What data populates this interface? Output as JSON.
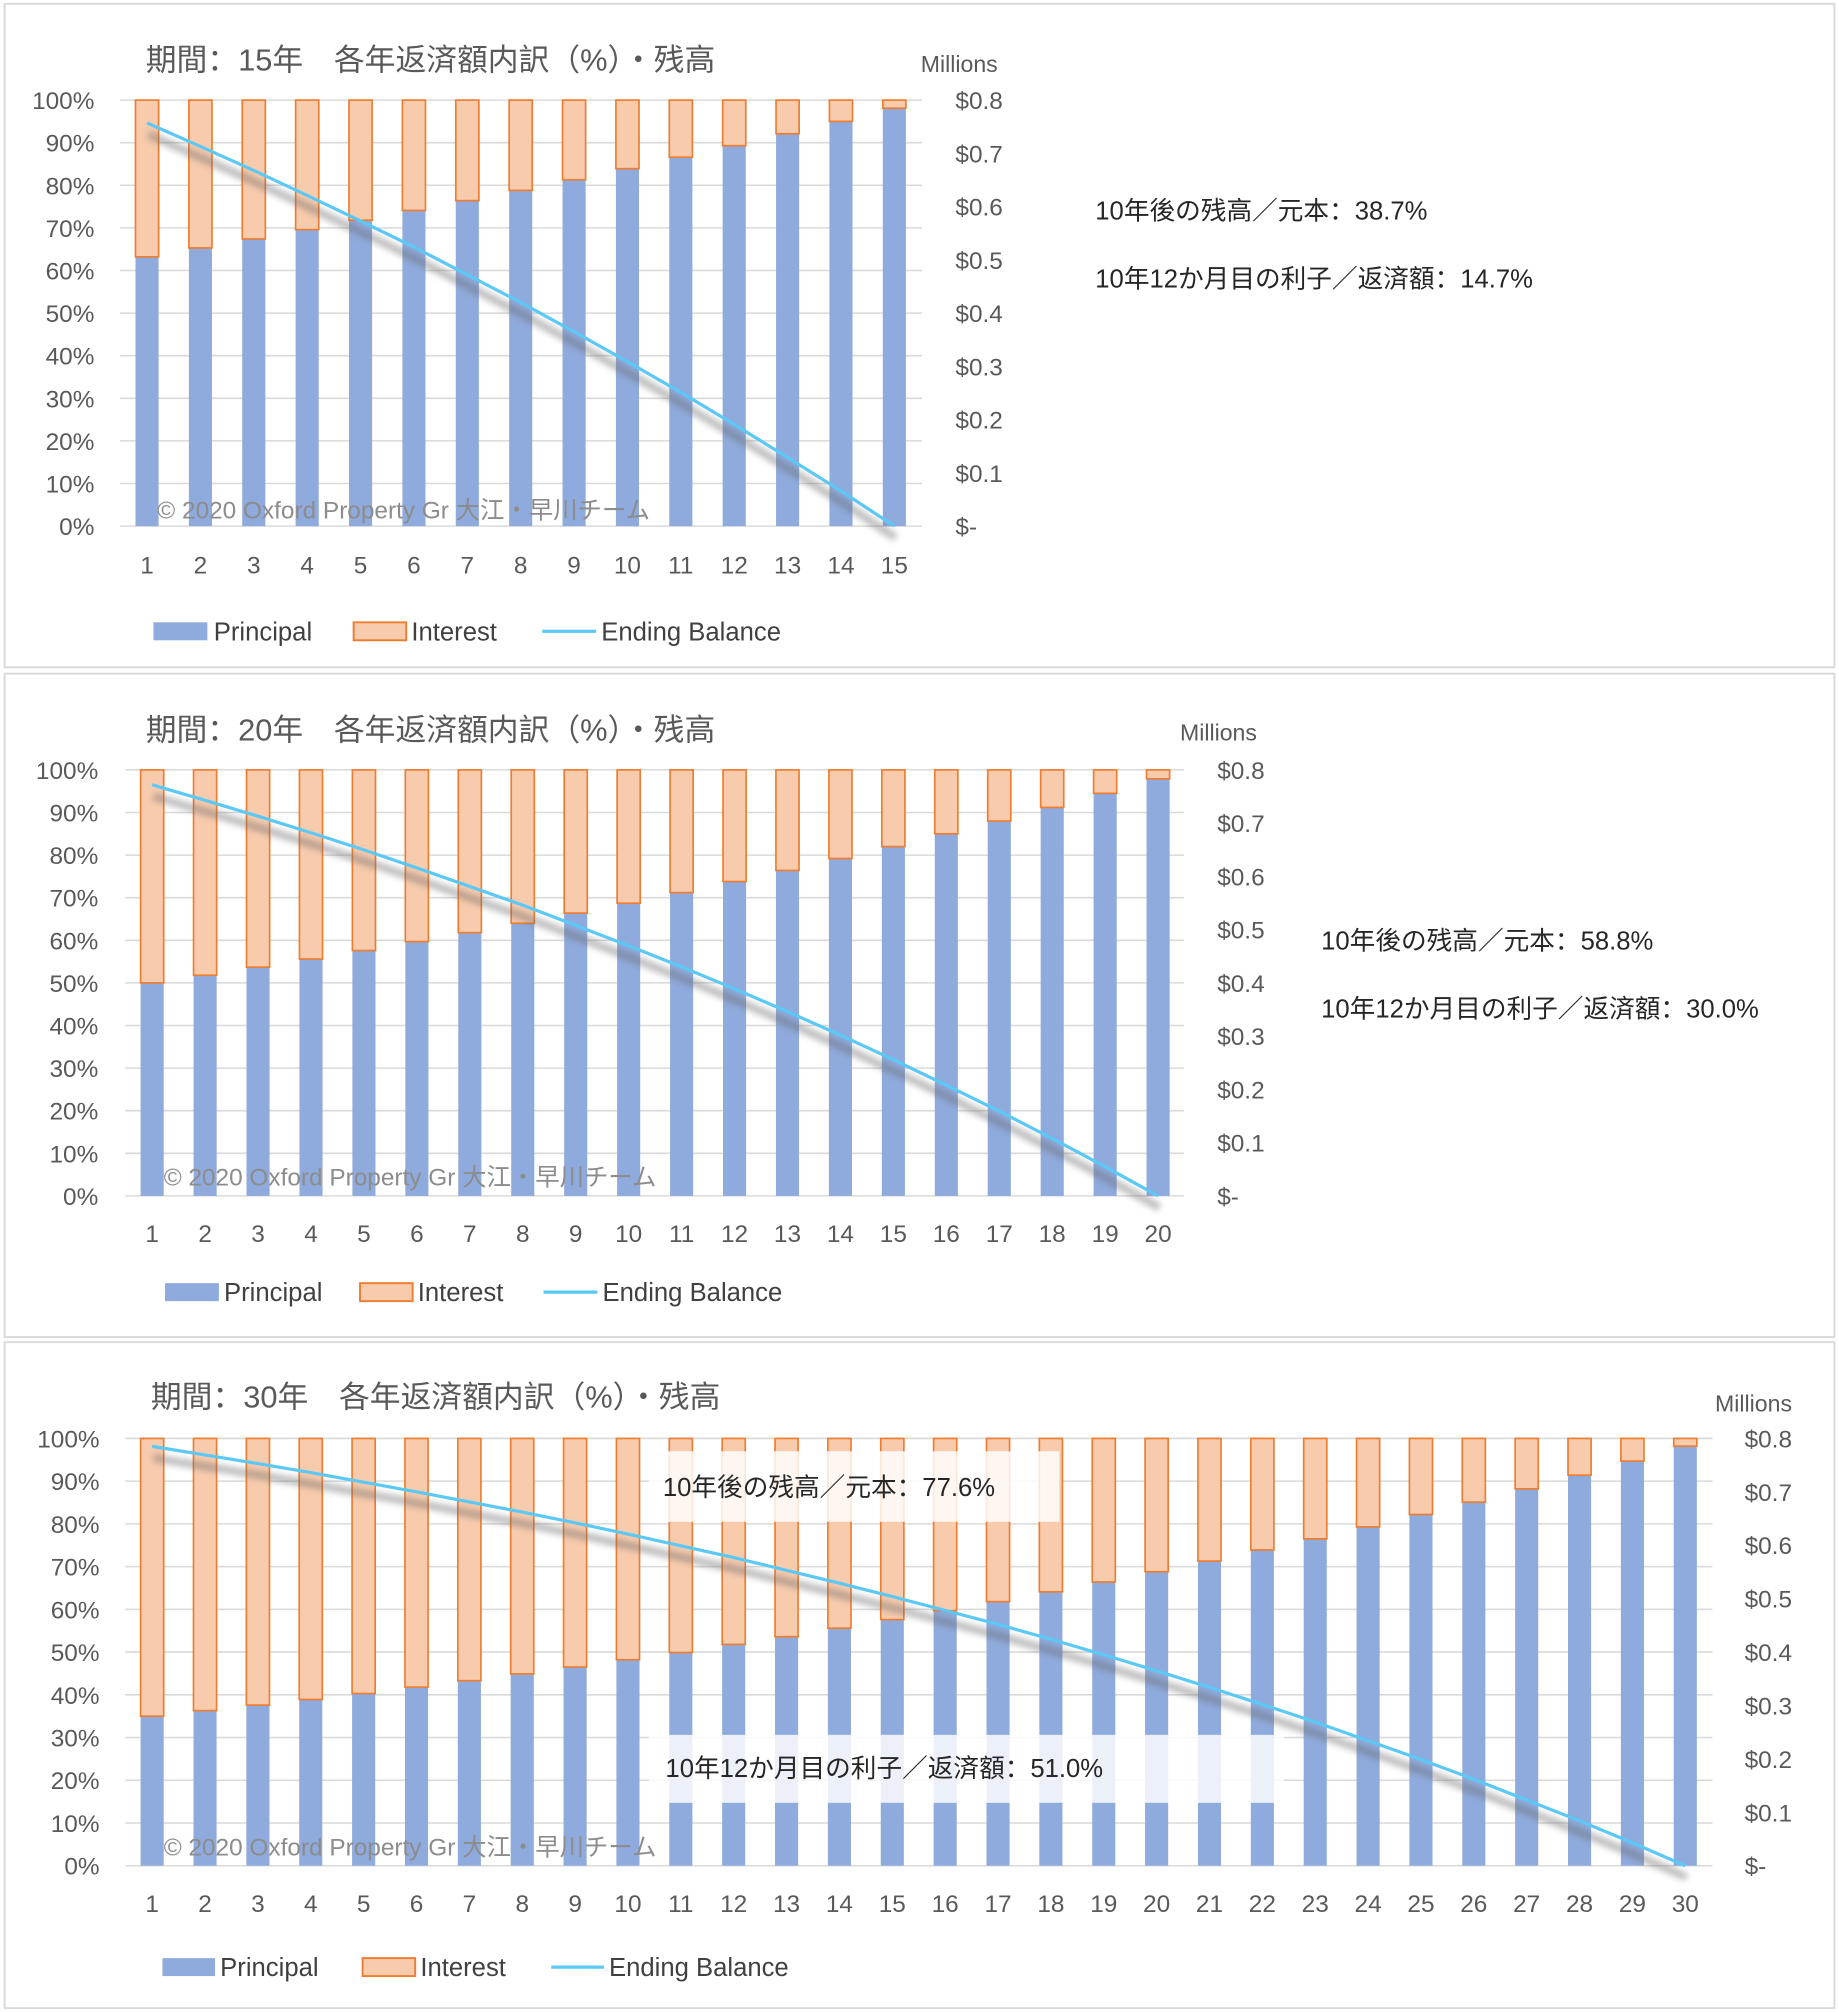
{
  "colors": {
    "principal": "#8faadc",
    "interest_fill": "#f8cbad",
    "interest_stroke": "#ed7d31",
    "ending_balance": "#5bc8f5",
    "grid": "#d9d9d9"
  },
  "legend": {
    "principal": "Principal",
    "interest": "Interest",
    "ending_balance": "Ending Balance"
  },
  "chart_data": [
    {
      "type": "bar+line",
      "title": "期間：15年　各年返済額内訳（%）・残高",
      "stacked": true,
      "grid": true,
      "legend_position": "bottom",
      "y_left_ticks": [
        "0%",
        "10%",
        "20%",
        "30%",
        "40%",
        "50%",
        "60%",
        "70%",
        "80%",
        "90%",
        "100%"
      ],
      "y_right_unit": "Millions",
      "y_right_ticks": [
        "$-",
        "$0.1",
        "$0.2",
        "$0.3",
        "$0.4",
        "$0.5",
        "$0.6",
        "$0.7",
        "$0.8"
      ],
      "y_right_lim": [
        0,
        0.8
      ],
      "categories": [
        "1",
        "2",
        "3",
        "4",
        "5",
        "6",
        "7",
        "8",
        "9",
        "10",
        "11",
        "12",
        "13",
        "14",
        "15"
      ],
      "principal_pct": [
        63.2,
        65.3,
        67.4,
        69.6,
        71.8,
        74.1,
        76.4,
        78.8,
        81.3,
        83.9,
        86.6,
        89.3,
        92.1,
        95.0,
        98.1
      ],
      "interest_pct": [
        36.8,
        34.7,
        32.6,
        30.4,
        28.2,
        25.9,
        23.6,
        21.2,
        18.7,
        16.1,
        13.4,
        10.7,
        7.9,
        5.0,
        1.9
      ],
      "ending_balance_millions": [
        0.757,
        0.713,
        0.668,
        0.621,
        0.573,
        0.524,
        0.472,
        0.42,
        0.365,
        0.309,
        0.251,
        0.191,
        0.129,
        0.066,
        0.0
      ],
      "annotations": [
        "10年後の残高／元本：38.7%",
        "10年12か月目の利子／返済額：14.7%"
      ],
      "watermark": "© 2020 Oxford Property Gr 大江・早川チーム"
    },
    {
      "type": "bar+line",
      "title": "期間：20年　各年返済額内訳（%）・残高",
      "stacked": true,
      "grid": true,
      "legend_position": "bottom",
      "y_left_ticks": [
        "0%",
        "10%",
        "20%",
        "30%",
        "40%",
        "50%",
        "60%",
        "70%",
        "80%",
        "90%",
        "100%"
      ],
      "y_right_unit": "Millions",
      "y_right_ticks": [
        "$-",
        "$0.1",
        "$0.2",
        "$0.3",
        "$0.4",
        "$0.5",
        "$0.6",
        "$0.7",
        "$0.8"
      ],
      "y_right_lim": [
        0,
        0.8
      ],
      "categories": [
        "1",
        "2",
        "3",
        "4",
        "5",
        "6",
        "7",
        "8",
        "9",
        "10",
        "11",
        "12",
        "13",
        "14",
        "15",
        "16",
        "17",
        "18",
        "19",
        "20"
      ],
      "principal_pct": [
        50.0,
        51.8,
        53.7,
        55.6,
        57.6,
        59.7,
        61.8,
        64.0,
        66.4,
        68.7,
        71.2,
        73.8,
        76.4,
        79.2,
        82.0,
        85.0,
        88.0,
        91.2,
        94.5,
        97.9
      ],
      "interest_pct": [
        50.0,
        48.2,
        46.3,
        44.4,
        42.4,
        40.3,
        38.2,
        36.0,
        33.6,
        31.3,
        28.8,
        26.2,
        23.6,
        20.8,
        18.0,
        15.0,
        12.0,
        8.8,
        5.5,
        2.1
      ],
      "ending_balance_millions": [
        0.772,
        0.743,
        0.713,
        0.682,
        0.65,
        0.616,
        0.581,
        0.546,
        0.508,
        0.47,
        0.43,
        0.389,
        0.346,
        0.302,
        0.256,
        0.208,
        0.159,
        0.108,
        0.055,
        0.0
      ],
      "annotations": [
        "10年後の残高／元本：58.8%",
        "10年12か月目の利子／返済額：30.0%"
      ],
      "watermark": "© 2020 Oxford Property Gr 大江・早川チーム"
    },
    {
      "type": "bar+line",
      "title": "期間：30年　各年返済額内訳（%）・残高",
      "stacked": true,
      "grid": true,
      "legend_position": "bottom",
      "y_left_ticks": [
        "0%",
        "10%",
        "20%",
        "30%",
        "40%",
        "50%",
        "60%",
        "70%",
        "80%",
        "90%",
        "100%"
      ],
      "y_right_unit": "Millions",
      "y_right_ticks": [
        "$-",
        "$0.1",
        "$0.2",
        "$0.3",
        "$0.4",
        "$0.5",
        "$0.6",
        "$0.7",
        "$0.8"
      ],
      "y_right_lim": [
        0,
        0.8
      ],
      "categories": [
        "1",
        "2",
        "3",
        "4",
        "5",
        "6",
        "7",
        "8",
        "9",
        "10",
        "11",
        "12",
        "13",
        "14",
        "15",
        "16",
        "17",
        "18",
        "19",
        "20",
        "21",
        "22",
        "23",
        "24",
        "25",
        "26",
        "27",
        "28",
        "29",
        "30"
      ],
      "principal_pct": [
        35.0,
        36.3,
        37.6,
        38.9,
        40.3,
        41.8,
        43.3,
        44.9,
        46.5,
        48.2,
        49.9,
        51.8,
        53.6,
        55.6,
        57.6,
        59.7,
        61.8,
        64.1,
        66.4,
        68.8,
        71.3,
        73.9,
        76.5,
        79.3,
        82.2,
        85.1,
        88.2,
        91.4,
        94.7,
        98.2
      ],
      "interest_pct": [
        65.0,
        63.7,
        62.4,
        61.1,
        59.7,
        58.2,
        56.7,
        55.1,
        53.5,
        51.8,
        50.1,
        48.2,
        46.4,
        44.4,
        42.4,
        40.3,
        38.2,
        35.9,
        33.6,
        31.2,
        28.7,
        26.1,
        23.5,
        20.7,
        17.8,
        14.9,
        11.8,
        8.6,
        5.3,
        1.8
      ],
      "ending_balance_millions": [
        0.785,
        0.769,
        0.753,
        0.736,
        0.718,
        0.7,
        0.681,
        0.662,
        0.642,
        0.621,
        0.599,
        0.577,
        0.553,
        0.529,
        0.504,
        0.478,
        0.452,
        0.424,
        0.395,
        0.365,
        0.334,
        0.302,
        0.269,
        0.234,
        0.199,
        0.162,
        0.123,
        0.084,
        0.043,
        0.0
      ],
      "annotations": [
        "10年後の残高／元本：77.6%",
        "10年12か月目の利子／返済額：51.0%"
      ],
      "watermark": "© 2020 Oxford Property Gr 大江・早川チーム"
    }
  ]
}
